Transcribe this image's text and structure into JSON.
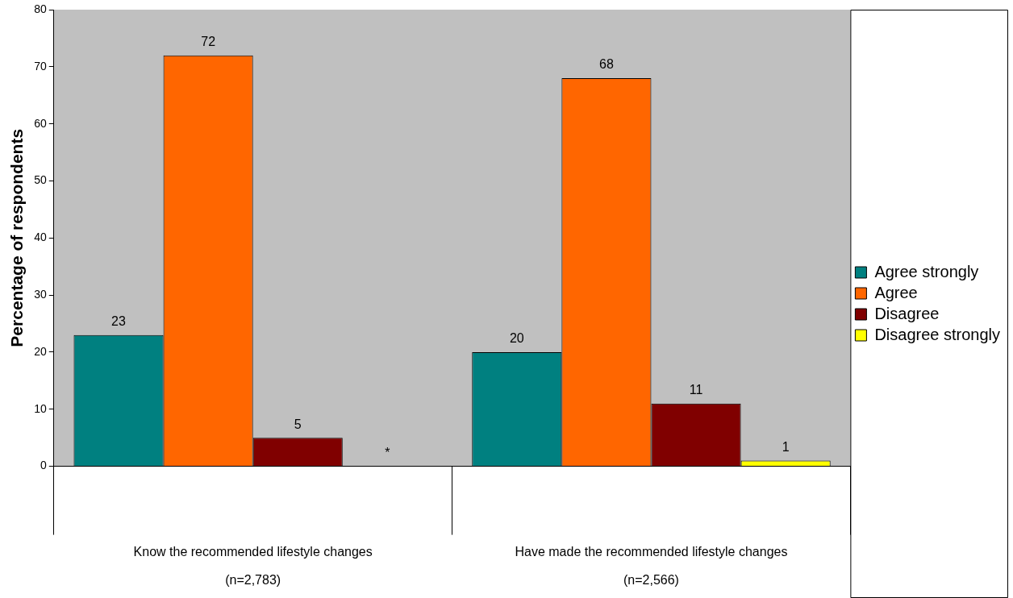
{
  "chart_data": {
    "type": "bar",
    "ylabel": "Percentage of respondents",
    "categories": [
      "Know the recommended lifestyle changes\n(n=2,783)",
      "Have made the recommended lifestyle changes\n(n=2,566)"
    ],
    "series": [
      {
        "name": "Agree strongly",
        "color": "#008080",
        "values": [
          23,
          20
        ],
        "value_labels": [
          "23",
          "20"
        ]
      },
      {
        "name": "Agree",
        "color": "#ff6600",
        "values": [
          72,
          68
        ],
        "value_labels": [
          "72",
          "68"
        ]
      },
      {
        "name": "Disagree",
        "color": "#800000",
        "values": [
          5,
          11
        ],
        "value_labels": [
          "5",
          "11"
        ]
      },
      {
        "name": "Disagree strongly",
        "color": "#ffff00",
        "values": [
          null,
          1
        ],
        "value_labels": [
          "*",
          "1"
        ]
      }
    ],
    "ylim": [
      0,
      80
    ],
    "yticks": [
      0,
      10,
      20,
      30,
      40,
      50,
      60,
      70,
      80
    ],
    "grid": false,
    "legend": "right"
  }
}
